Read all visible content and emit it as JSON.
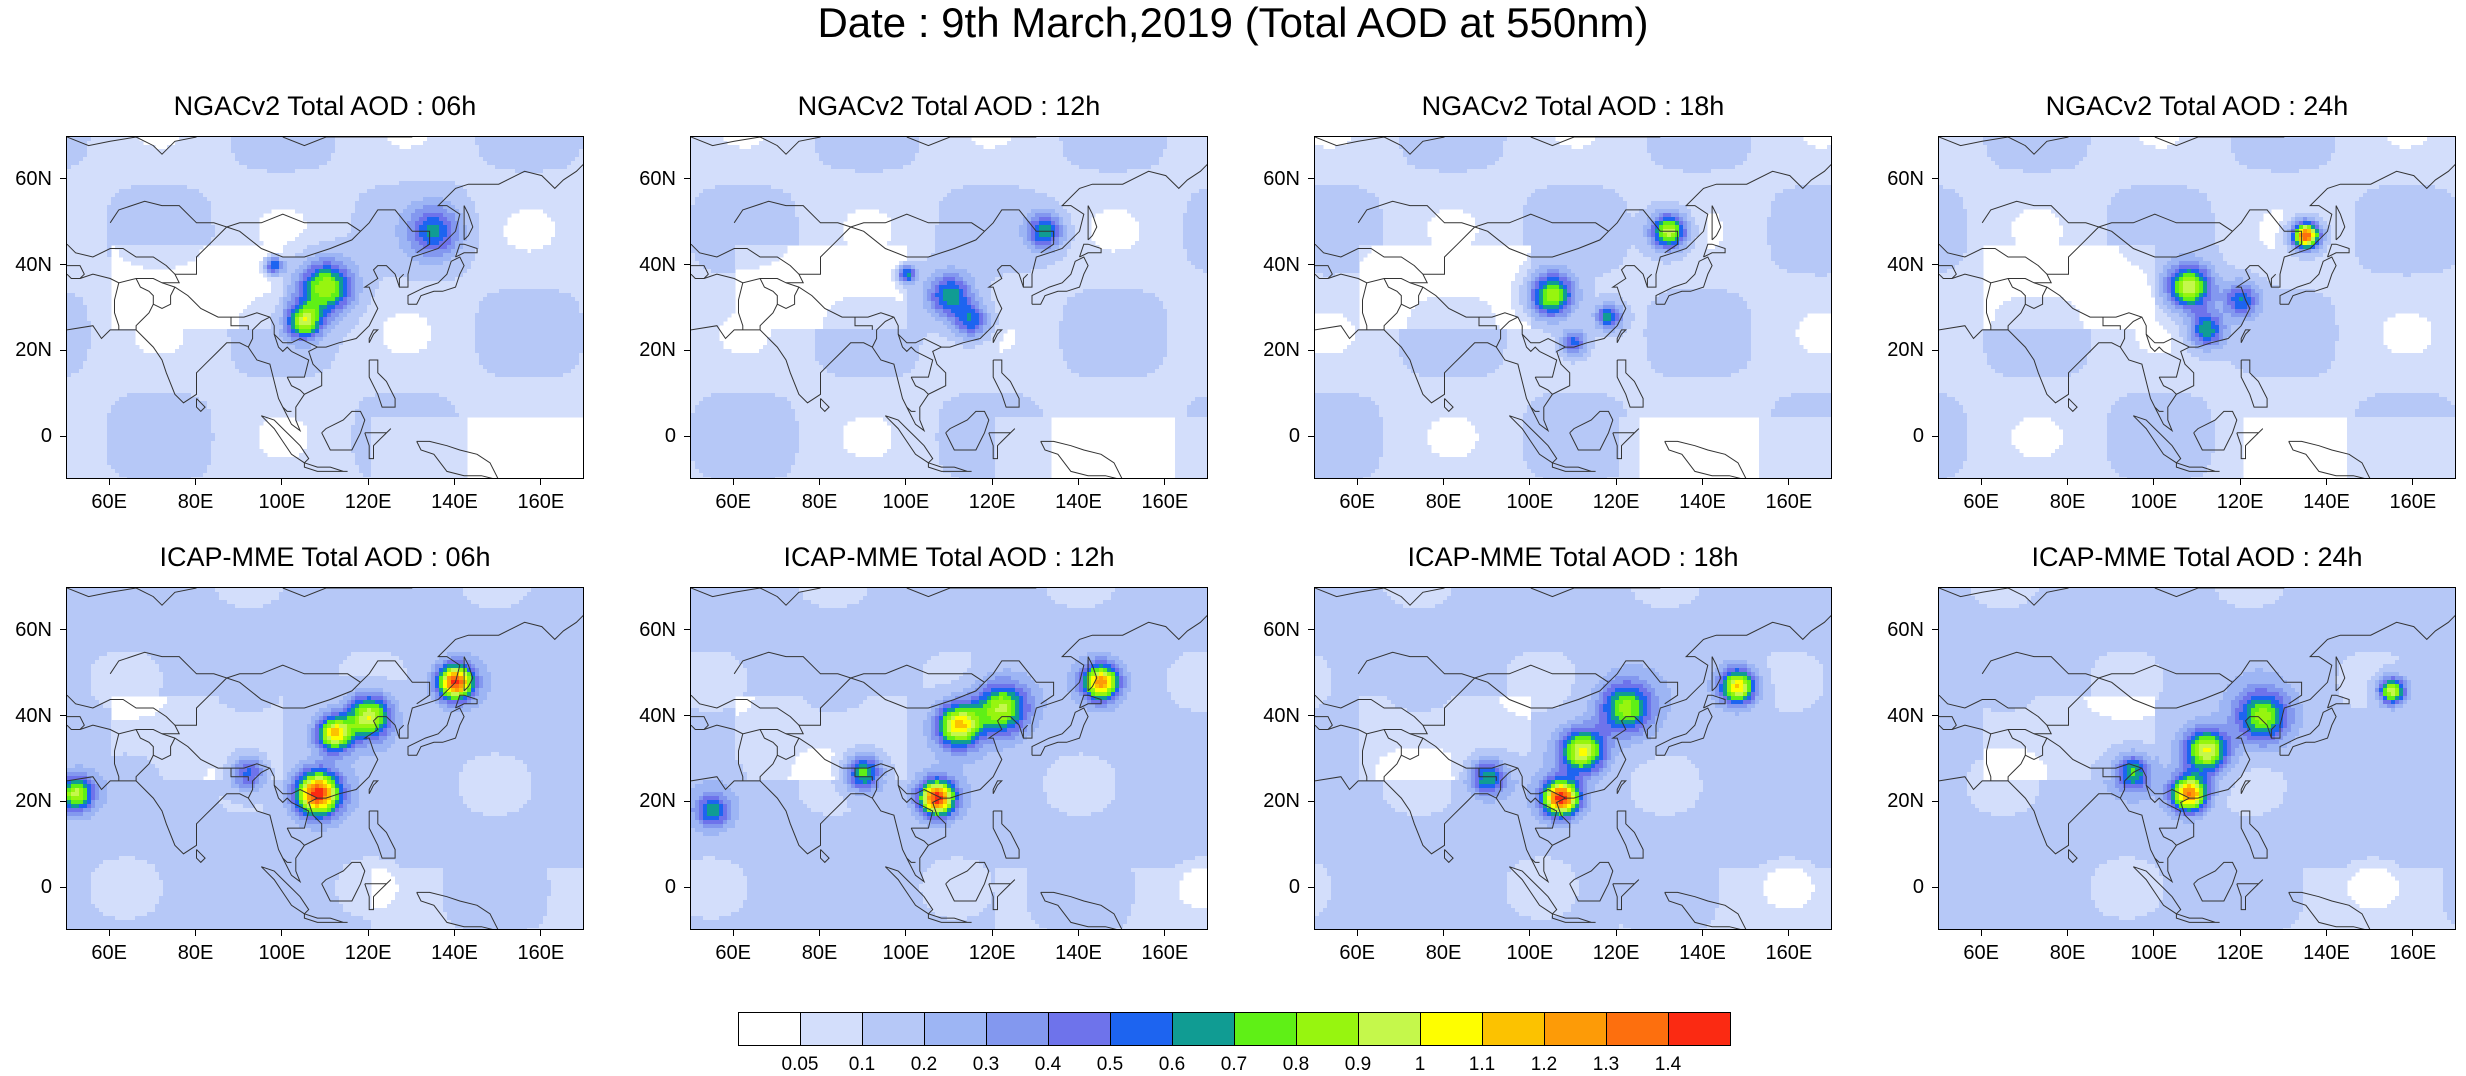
{
  "figure": {
    "title": "Date : 9th March,2019 (Total AOD at 550nm)"
  },
  "panels": [
    {
      "title": "NGACv2 Total AOD : 06h",
      "model": "NGACv2",
      "lead": "06h",
      "hotspots": [
        [
          110,
          35,
          0.8,
          6
        ],
        [
          105,
          27,
          0.8,
          4
        ],
        [
          135,
          48,
          0.5,
          6
        ],
        [
          98,
          40,
          0.6,
          2
        ]
      ]
    },
    {
      "title": "NGACv2 Total AOD : 12h",
      "model": "NGACv2",
      "lead": "12h",
      "hotspots": [
        [
          110,
          33,
          0.6,
          5
        ],
        [
          100,
          38,
          0.6,
          2
        ],
        [
          132,
          48,
          0.6,
          4
        ],
        [
          115,
          27,
          0.5,
          4
        ]
      ]
    },
    {
      "title": "NGACv2 Total AOD : 18h",
      "model": "NGACv2",
      "lead": "18h",
      "hotspots": [
        [
          132,
          48,
          0.9,
          4
        ],
        [
          105,
          33,
          0.8,
          5
        ],
        [
          118,
          28,
          0.6,
          3
        ],
        [
          110,
          22,
          0.5,
          3
        ]
      ]
    },
    {
      "title": "NGACv2 Total AOD : 24h",
      "model": "NGACv2",
      "lead": "24h",
      "hotspots": [
        [
          135,
          47,
          1.35,
          3
        ],
        [
          108,
          35,
          0.9,
          5
        ],
        [
          112,
          25,
          0.6,
          4
        ],
        [
          120,
          32,
          0.5,
          4
        ]
      ]
    },
    {
      "title": "ICAP-MME Total AOD : 06h",
      "model": "ICAP-MME",
      "lead": "06h",
      "hotspots": [
        [
          140,
          48,
          1.3,
          4
        ],
        [
          108,
          22,
          1.35,
          5
        ],
        [
          112,
          36,
          1.0,
          4
        ],
        [
          120,
          40,
          0.9,
          5
        ],
        [
          52,
          22,
          0.8,
          4
        ],
        [
          92,
          27,
          0.5,
          4
        ]
      ]
    },
    {
      "title": "ICAP-MME Total AOD : 12h",
      "model": "ICAP-MME",
      "lead": "12h",
      "hotspots": [
        [
          145,
          48,
          1.1,
          4
        ],
        [
          107,
          21,
          1.3,
          4
        ],
        [
          112,
          38,
          1.0,
          5
        ],
        [
          122,
          42,
          0.8,
          6
        ],
        [
          90,
          27,
          0.7,
          4
        ],
        [
          55,
          18,
          0.5,
          4
        ]
      ]
    },
    {
      "title": "ICAP-MME Total AOD : 18h",
      "model": "ICAP-MME",
      "lead": "18h",
      "hotspots": [
        [
          148,
          47,
          1.0,
          4
        ],
        [
          107,
          21,
          1.35,
          4
        ],
        [
          112,
          32,
          0.9,
          5
        ],
        [
          122,
          42,
          0.7,
          6
        ],
        [
          90,
          26,
          0.6,
          4
        ]
      ]
    },
    {
      "title": "ICAP-MME Total AOD : 24h",
      "model": "ICAP-MME",
      "lead": "24h",
      "hotspots": [
        [
          155,
          46,
          0.9,
          3
        ],
        [
          108,
          22,
          1.2,
          4
        ],
        [
          112,
          32,
          0.9,
          5
        ],
        [
          125,
          40,
          0.7,
          6
        ],
        [
          95,
          27,
          0.6,
          4
        ]
      ]
    }
  ],
  "axes": {
    "lon_ticks": [
      "60E",
      "80E",
      "100E",
      "120E",
      "140E",
      "160E"
    ],
    "lon_values": [
      60,
      80,
      100,
      120,
      140,
      160
    ],
    "lat_ticks": [
      "60N",
      "40N",
      "20N",
      "0"
    ],
    "lat_values": [
      60,
      40,
      20,
      0
    ],
    "lon_range": [
      50,
      170
    ],
    "lat_range": [
      -10,
      70
    ]
  },
  "colorbar": {
    "levels": [
      "0.05",
      "0.1",
      "0.2",
      "0.3",
      "0.4",
      "0.5",
      "0.6",
      "0.7",
      "0.8",
      "0.9",
      "1",
      "1.1",
      "1.2",
      "1.3",
      "1.4"
    ],
    "colors": [
      "#ffffff",
      "#d3defb",
      "#b6c8f7",
      "#9db5f4",
      "#8398ef",
      "#6e73eb",
      "#1d64f0",
      "#109c93",
      "#5ff016",
      "#97f50f",
      "#c5f84b",
      "#fefe00",
      "#fcc200",
      "#fd9b07",
      "#fd6f0e",
      "#fb2a12"
    ]
  }
}
